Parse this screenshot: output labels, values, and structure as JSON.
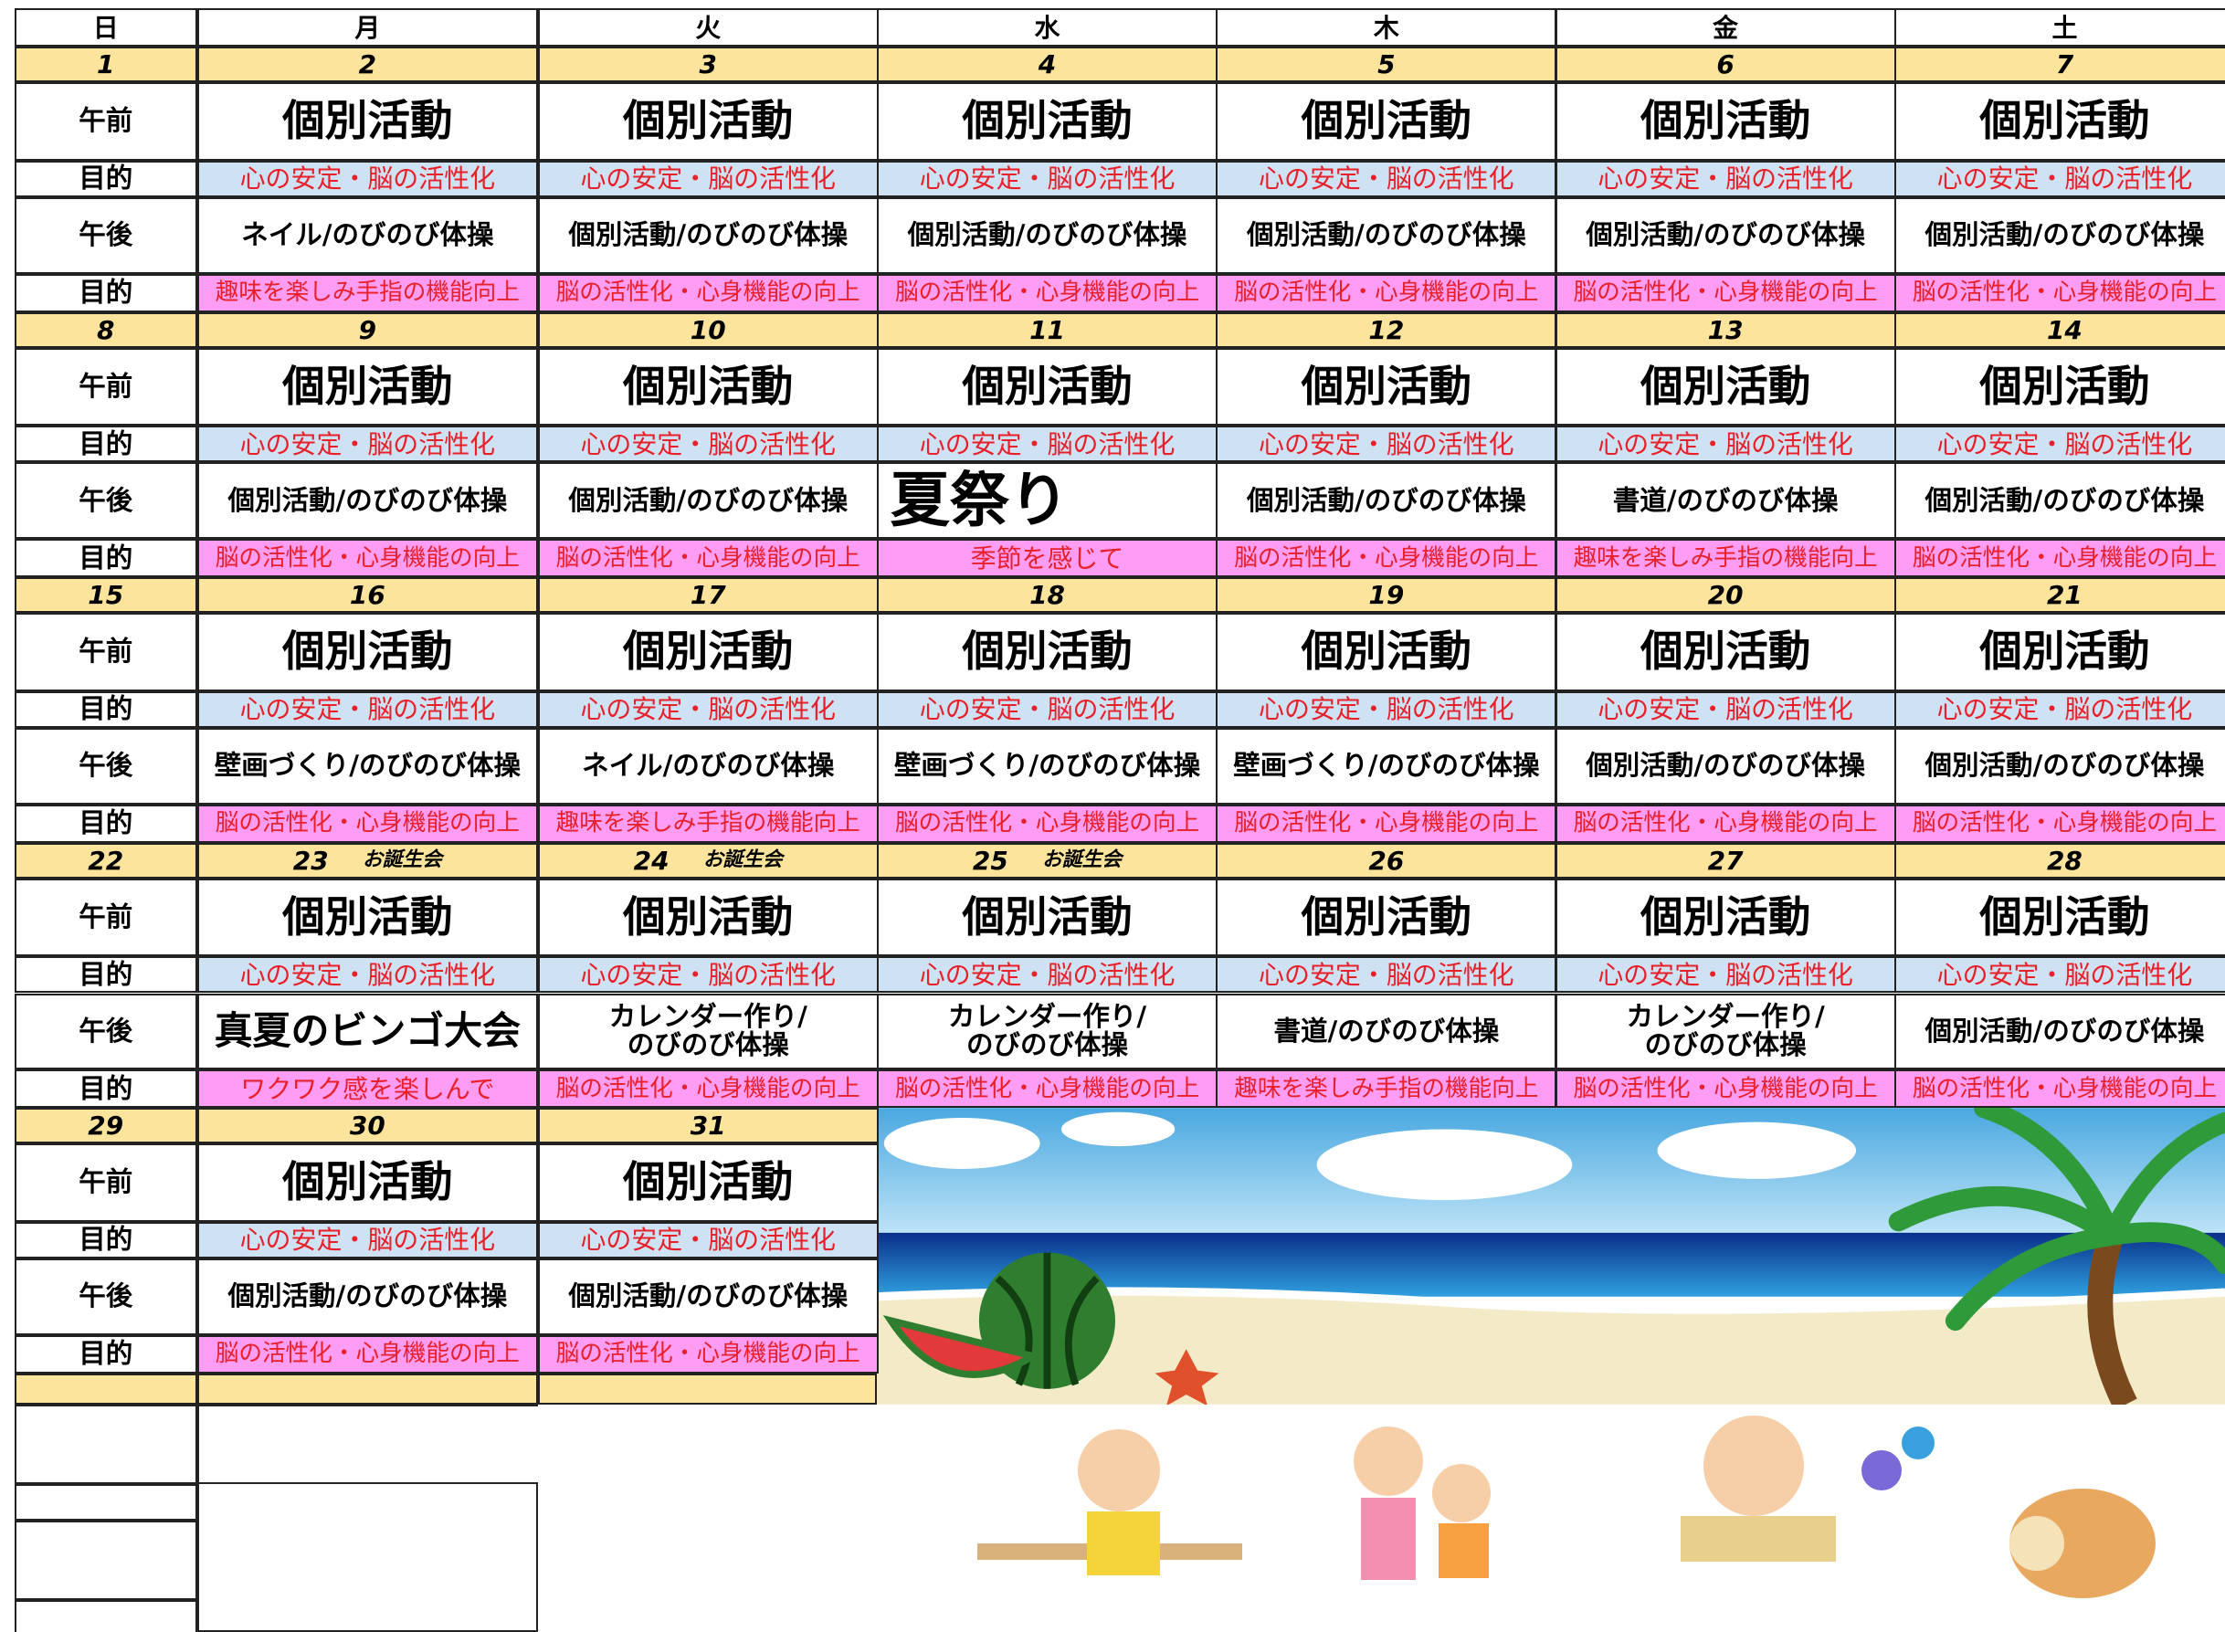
{
  "weekdays": [
    "日",
    "月",
    "火",
    "水",
    "木",
    "金",
    "土"
  ],
  "row_labels": [
    "午前",
    "目的",
    "午後",
    "目的"
  ],
  "weeks": [
    {
      "sunday": "1",
      "days": [
        {
          "date": "2",
          "am": "個別活動",
          "am_goal": "心の安定・脳の活性化",
          "pm": "ネイル/のびのび体操",
          "pm_goal": "趣味を楽しみ手指の機能向上"
        },
        {
          "date": "3",
          "am": "個別活動",
          "am_goal": "心の安定・脳の活性化",
          "pm": "個別活動/のびのび体操",
          "pm_goal": "脳の活性化・心身機能の向上"
        },
        {
          "date": "4",
          "am": "個別活動",
          "am_goal": "心の安定・脳の活性化",
          "pm": "個別活動/のびのび体操",
          "pm_goal": "脳の活性化・心身機能の向上"
        },
        {
          "date": "5",
          "am": "個別活動",
          "am_goal": "心の安定・脳の活性化",
          "pm": "個別活動/のびのび体操",
          "pm_goal": "脳の活性化・心身機能の向上"
        },
        {
          "date": "6",
          "am": "個別活動",
          "am_goal": "心の安定・脳の活性化",
          "pm": "個別活動/のびのび体操",
          "pm_goal": "脳の活性化・心身機能の向上"
        },
        {
          "date": "7",
          "am": "個別活動",
          "am_goal": "心の安定・脳の活性化",
          "pm": "個別活動/のびのび体操",
          "pm_goal": "脳の活性化・心身機能の向上"
        }
      ]
    },
    {
      "sunday": "8",
      "days": [
        {
          "date": "9",
          "am": "個別活動",
          "am_goal": "心の安定・脳の活性化",
          "pm": "個別活動/のびのび体操",
          "pm_goal": "脳の活性化・心身機能の向上"
        },
        {
          "date": "10",
          "am": "個別活動",
          "am_goal": "心の安定・脳の活性化",
          "pm": "個別活動/のびのび体操",
          "pm_goal": "脳の活性化・心身機能の向上"
        },
        {
          "date": "11",
          "am": "個別活動",
          "am_goal": "心の安定・脳の活性化",
          "pm": "夏祭り",
          "pm_goal": "季節を感じて"
        },
        {
          "date": "12",
          "am": "個別活動",
          "am_goal": "心の安定・脳の活性化",
          "pm": "個別活動/のびのび体操",
          "pm_goal": "脳の活性化・心身機能の向上"
        },
        {
          "date": "13",
          "am": "個別活動",
          "am_goal": "心の安定・脳の活性化",
          "pm": "書道/のびのび体操",
          "pm_goal": "趣味を楽しみ手指の機能向上"
        },
        {
          "date": "14",
          "am": "個別活動",
          "am_goal": "心の安定・脳の活性化",
          "pm": "個別活動/のびのび体操",
          "pm_goal": "脳の活性化・心身機能の向上"
        }
      ]
    },
    {
      "sunday": "15",
      "days": [
        {
          "date": "16",
          "am": "個別活動",
          "am_goal": "心の安定・脳の活性化",
          "pm": "壁画づくり/のびのび体操",
          "pm_goal": "脳の活性化・心身機能の向上"
        },
        {
          "date": "17",
          "am": "個別活動",
          "am_goal": "心の安定・脳の活性化",
          "pm": "ネイル/のびのび体操",
          "pm_goal": "趣味を楽しみ手指の機能向上"
        },
        {
          "date": "18",
          "am": "個別活動",
          "am_goal": "心の安定・脳の活性化",
          "pm": "壁画づくり/のびのび体操",
          "pm_goal": "脳の活性化・心身機能の向上"
        },
        {
          "date": "19",
          "am": "個別活動",
          "am_goal": "心の安定・脳の活性化",
          "pm": "壁画づくり/のびのび体操",
          "pm_goal": "脳の活性化・心身機能の向上"
        },
        {
          "date": "20",
          "am": "個別活動",
          "am_goal": "心の安定・脳の活性化",
          "pm": "個別活動/のびのび体操",
          "pm_goal": "脳の活性化・心身機能の向上"
        },
        {
          "date": "21",
          "am": "個別活動",
          "am_goal": "心の安定・脳の活性化",
          "pm": "個別活動/のびのび体操",
          "pm_goal": "脳の活性化・心身機能の向上"
        }
      ]
    },
    {
      "sunday": "22",
      "days": [
        {
          "date": "23",
          "event": "お誕生会",
          "am": "個別活動",
          "am_goal": "心の安定・脳の活性化",
          "pm": "真夏のビンゴ大会",
          "pm_goal": "ワクワク感を楽しんで"
        },
        {
          "date": "24",
          "event": "お誕生会",
          "am": "個別活動",
          "am_goal": "心の安定・脳の活性化",
          "pm": "カレンダー作り/\nのびのび体操",
          "pm_goal": "脳の活性化・心身機能の向上"
        },
        {
          "date": "25",
          "event": "お誕生会",
          "am": "個別活動",
          "am_goal": "心の安定・脳の活性化",
          "pm": "カレンダー作り/\nのびのび体操",
          "pm_goal": "脳の活性化・心身機能の向上"
        },
        {
          "date": "26",
          "am": "個別活動",
          "am_goal": "心の安定・脳の活性化",
          "pm": "書道/のびのび体操",
          "pm_goal": "趣味を楽しみ手指の機能向上"
        },
        {
          "date": "27",
          "am": "個別活動",
          "am_goal": "心の安定・脳の活性化",
          "pm": "カレンダー作り/\nのびのび体操",
          "pm_goal": "脳の活性化・心身機能の向上"
        },
        {
          "date": "28",
          "am": "個別活動",
          "am_goal": "心の安定・脳の活性化",
          "pm": "個別活動/のびのび体操",
          "pm_goal": "脳の活性化・心身機能の向上"
        }
      ]
    },
    {
      "sunday": "29",
      "days": [
        {
          "date": "30",
          "am": "個別活動",
          "am_goal": "心の安定・脳の活性化",
          "pm": "個別活動/のびのび体操",
          "pm_goal": "脳の活性化・心身機能の向上"
        },
        {
          "date": "31",
          "am": "個別活動",
          "am_goal": "心の安定・脳の活性化",
          "pm": "個別活動/のびのび体操",
          "pm_goal": "脳の活性化・心身機能の向上"
        }
      ]
    }
  ]
}
